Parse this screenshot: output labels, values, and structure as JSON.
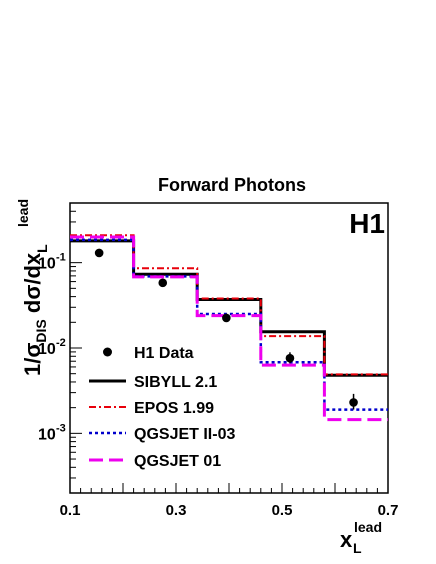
{
  "chart_data": {
    "type": "line",
    "title": "Forward Photons",
    "experiment_label": "H1",
    "xlabel": {
      "main": "x",
      "sub": "L",
      "sup": "lead"
    },
    "ylabel": {
      "prefix": "1/",
      "sigma": "σ",
      "sigma_sub": "DIS",
      "mid": " dσ/dx",
      "sub": "L",
      "sup": "lead"
    },
    "x_scale": "linear",
    "y_scale": "log",
    "xlim": [
      0.1,
      0.7
    ],
    "ylim": [
      0.0002,
      0.5
    ],
    "x_ticks": [
      {
        "value": 0.1,
        "label": "0.1"
      },
      {
        "value": 0.3,
        "label": "0.3"
      },
      {
        "value": 0.5,
        "label": "0.5"
      },
      {
        "value": 0.7,
        "label": "0.7"
      }
    ],
    "y_ticks": [
      {
        "value": 0.001,
        "base": "10",
        "exp": "-3"
      },
      {
        "value": 0.01,
        "base": "10",
        "exp": "-2"
      },
      {
        "value": 0.1,
        "base": "10",
        "exp": "-1"
      }
    ],
    "bin_edges": [
      0.1,
      0.22,
      0.34,
      0.46,
      0.58,
      0.7
    ],
    "data_series": {
      "name": "H1 Data",
      "color": "#000000",
      "x": [
        0.155,
        0.275,
        0.395,
        0.515,
        0.635
      ],
      "y": [
        0.13,
        0.058,
        0.0225,
        0.0076,
        0.0023
      ],
      "err_low": [
        0.118,
        0.053,
        0.0202,
        0.0066,
        0.0019
      ],
      "err_high": [
        0.142,
        0.064,
        0.0252,
        0.0089,
        0.0029
      ]
    },
    "series": [
      {
        "name": "SIBYLL 2.1",
        "color": "#000000",
        "dash": "",
        "width": 3,
        "values": [
          0.18,
          0.073,
          0.037,
          0.0155,
          0.0048
        ]
      },
      {
        "name": "EPOS 1.99",
        "color": "#e8000b",
        "dash": "7 3 2 3",
        "width": 2,
        "values": [
          0.21,
          0.086,
          0.038,
          0.0138,
          0.0049
        ]
      },
      {
        "name": "QGSJET II-03",
        "color": "#0000cc",
        "dash": "3 3",
        "width": 2.5,
        "values": [
          0.185,
          0.069,
          0.025,
          0.0068,
          0.0019
        ]
      },
      {
        "name": "QGSJET 01",
        "color": "#ee00ee",
        "dash": "14 6",
        "width": 3,
        "values": [
          0.2,
          0.068,
          0.024,
          0.0063,
          0.00145
        ]
      }
    ],
    "legend_position": "bottom-left",
    "grid": false
  }
}
